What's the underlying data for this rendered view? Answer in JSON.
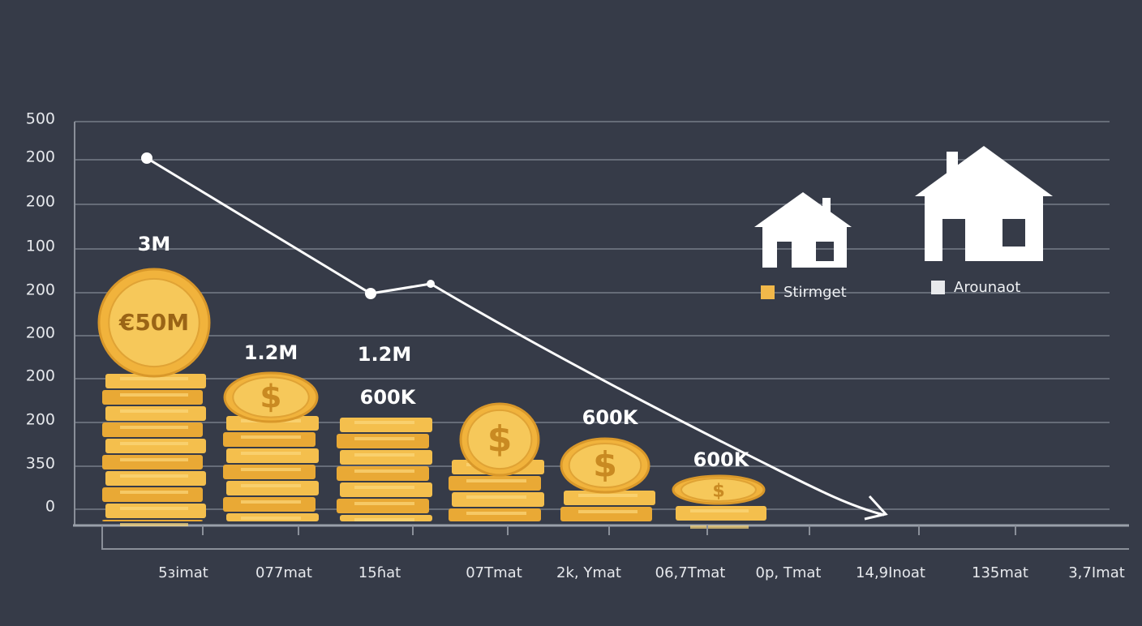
{
  "y_axis_labels": [
    "500",
    "200",
    "200",
    "100",
    "200",
    "200",
    "200",
    "200",
    "350",
    "0"
  ],
  "x_axis_labels": [
    "5ɜimat",
    "077mat",
    "15ɦat",
    "07Tmat",
    "2k, Ymat",
    "06,7Tmat",
    "0p, Tmat",
    "14,9Inoat",
    "135mat",
    "3,7Imat"
  ],
  "coin_label": "€50M",
  "data_labels": [
    "3M",
    "1.2M",
    "1.2M",
    "600K",
    "600K",
    "600K"
  ],
  "legend": [
    "Stirmget",
    "Arounaot"
  ]
}
